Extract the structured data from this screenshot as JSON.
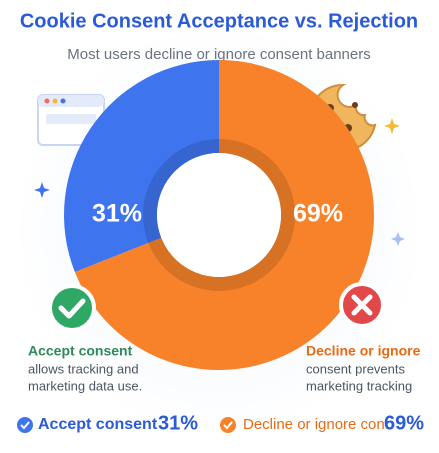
{
  "chart_data": {
    "type": "donut",
    "title": "Cookie Consent Acceptance vs. Rejection",
    "subtitle": "Most users decline or ignore consent banners",
    "categories": [
      "Accept consent",
      "Decline or ignore"
    ],
    "values": [
      31,
      69
    ],
    "value_labels": [
      "31%",
      "69%"
    ],
    "colors": [
      "#3f74ef",
      "#f7822a"
    ],
    "descriptions": [
      [
        "allows tracking and",
        "marketing data use."
      ],
      [
        "consent prevents",
        "marketing tracking"
      ]
    ],
    "legend": [
      "Accept consent",
      "Decline or ignore cont"
    ]
  }
}
